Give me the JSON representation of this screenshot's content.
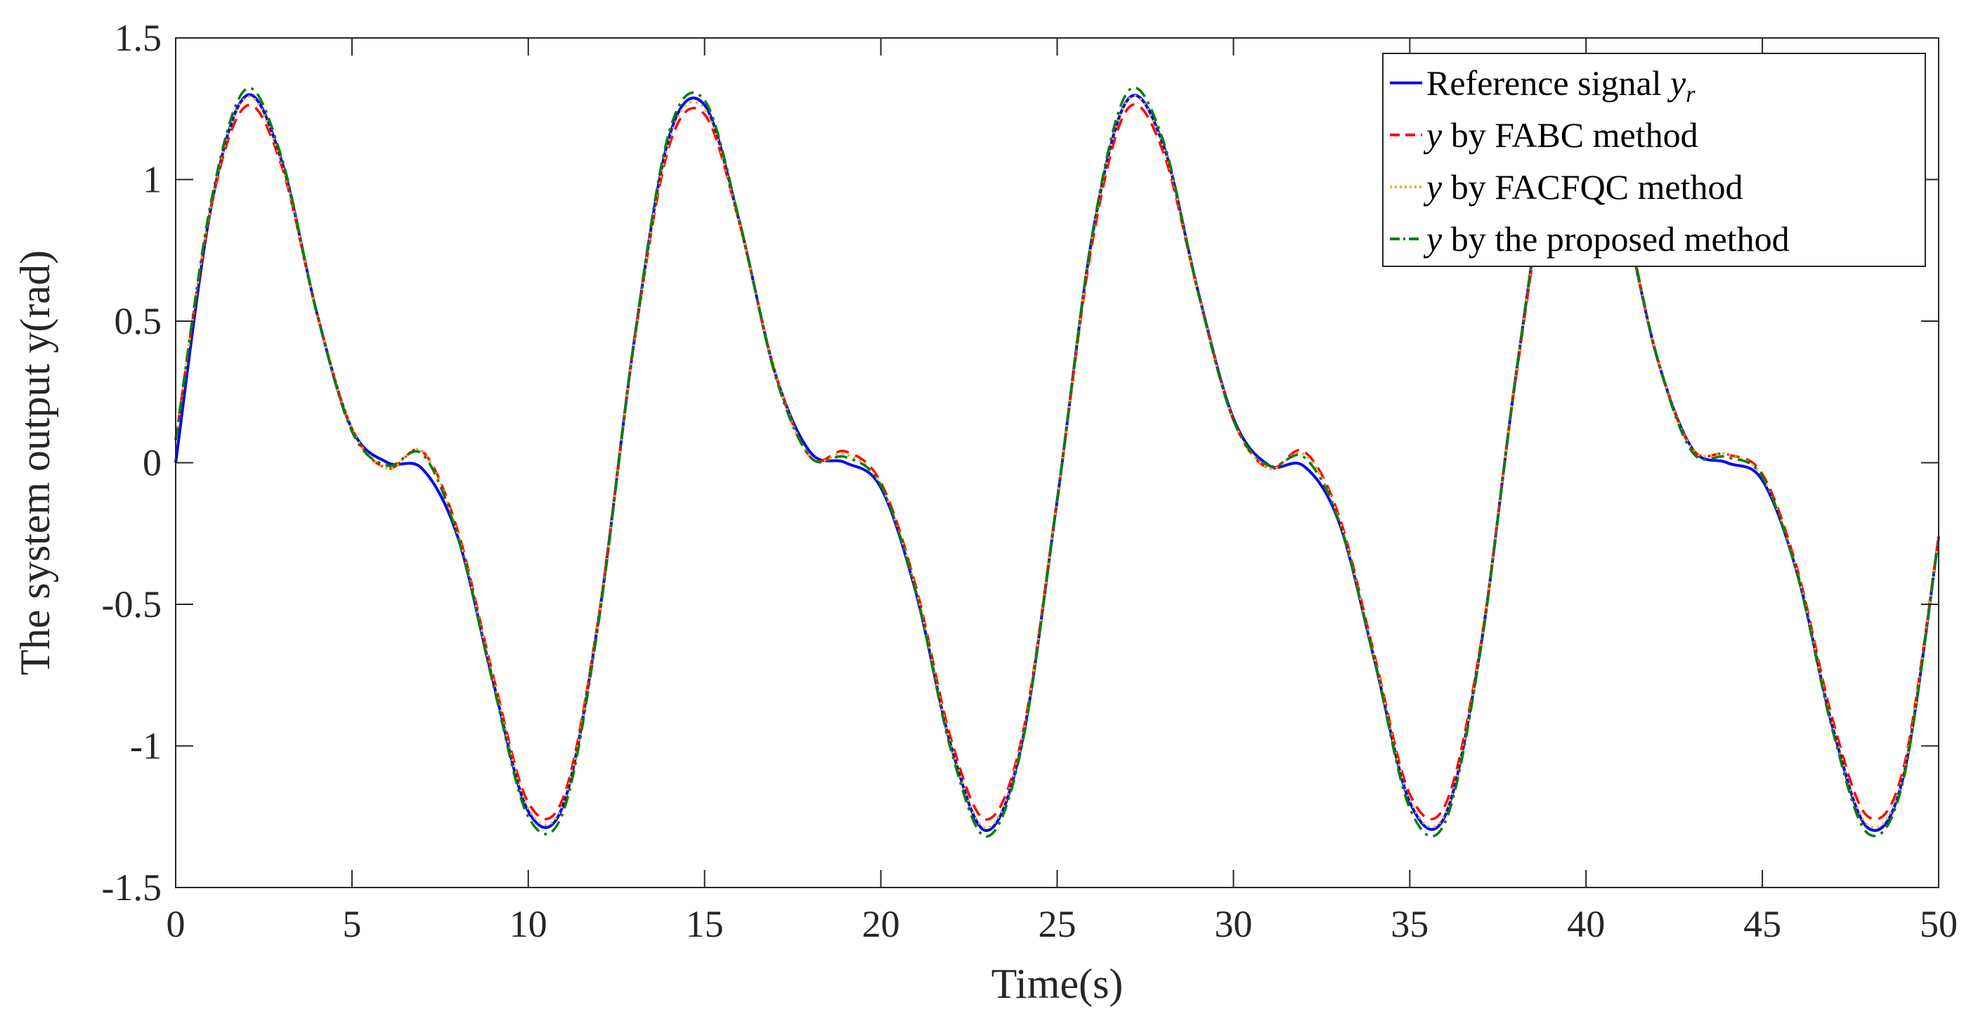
{
  "chart_data": {
    "type": "line",
    "title": "",
    "xlabel": "Time(s)",
    "ylabel": "The system output y(rad)",
    "xlim": [
      0,
      50
    ],
    "ylim": [
      -1.5,
      1.5
    ],
    "xticks": [
      "0",
      "5",
      "10",
      "15",
      "20",
      "25",
      "30",
      "35",
      "40",
      "45",
      "50"
    ],
    "yticks": [
      "-1.5",
      "-1",
      "-0.5",
      "0",
      "0.5",
      "1",
      "1.5"
    ],
    "grid": false,
    "legend_position": "top-right",
    "x": [
      0,
      1,
      2,
      3,
      4,
      5,
      6,
      7,
      8,
      9,
      10,
      11,
      12,
      13,
      14,
      15,
      16,
      17,
      18,
      19,
      20,
      21,
      22,
      23,
      24,
      25,
      26,
      27,
      28,
      29,
      30,
      31,
      32,
      33,
      34,
      35,
      36,
      37,
      38,
      39,
      40,
      41,
      42,
      43,
      44,
      45,
      46,
      47,
      48,
      49,
      50
    ],
    "series": [
      {
        "name": "Reference signal y_r",
        "legend_main": "Reference signal ",
        "legend_italic": "y",
        "legend_sub": "r",
        "color": "#0000ff",
        "dash": "solid",
        "values": [
          0,
          0.9,
          1.296,
          1.068,
          0.531,
          0.119,
          0.001,
          -0.022,
          -0.262,
          -0.771,
          -1.231,
          -1.206,
          -0.548,
          0.425,
          1.152,
          1.263,
          0.845,
          0.318,
          0.037,
          0.0,
          -0.088,
          -0.461,
          -1.004,
          -1.299,
          -0.989,
          -0.133,
          0.802,
          1.282,
          1.126,
          0.603,
          0.156,
          -0.009,
          -0.012,
          -0.212,
          -0.697,
          -1.198,
          -1.247,
          -0.66,
          0.298,
          1.087,
          1.286,
          0.918,
          0.378,
          0.052,
          0.0,
          -0.062,
          -0.395,
          -0.937,
          -1.29,
          -1.108,
          -0.263
        ]
      },
      {
        "name": "y by FABC method",
        "legend_main": " by FABC method",
        "legend_italic": "y",
        "color": "#ff0000",
        "dash": "dashed",
        "values": [
          0.08,
          0.9,
          1.26,
          1.05,
          0.53,
          0.12,
          -0.02,
          0.04,
          -0.24,
          -0.75,
          -1.2,
          -1.18,
          -0.54,
          0.42,
          1.12,
          1.23,
          0.84,
          0.32,
          0.02,
          0.04,
          -0.07,
          -0.44,
          -0.98,
          -1.26,
          -0.97,
          -0.13,
          0.78,
          1.25,
          1.1,
          0.6,
          0.15,
          -0.02,
          0.04,
          -0.19,
          -0.68,
          -1.17,
          -1.21,
          -0.65,
          0.29,
          1.06,
          1.25,
          0.91,
          0.38,
          0.05,
          0.03,
          -0.04,
          -0.38,
          -0.91,
          -1.25,
          -1.08,
          -0.26
        ]
      },
      {
        "name": "y by FACFQC method",
        "legend_main": " by FACFQC method",
        "legend_italic": "y",
        "color": "#edb120",
        "dash": "dotted",
        "values": [
          0.08,
          0.91,
          1.29,
          1.06,
          0.53,
          0.12,
          -0.02,
          0.04,
          -0.25,
          -0.76,
          -1.22,
          -1.2,
          -0.55,
          0.42,
          1.14,
          1.25,
          0.84,
          0.32,
          0.02,
          0.03,
          -0.08,
          -0.45,
          -1.0,
          -1.29,
          -0.98,
          -0.13,
          0.8,
          1.28,
          1.12,
          0.6,
          0.15,
          -0.02,
          0.03,
          -0.2,
          -0.69,
          -1.19,
          -1.24,
          -0.66,
          0.3,
          1.08,
          1.28,
          0.92,
          0.38,
          0.05,
          0.03,
          -0.05,
          -0.39,
          -0.93,
          -1.28,
          -1.1,
          -0.26
        ]
      },
      {
        "name": "y by the proposed method",
        "legend_main": " by the proposed method",
        "legend_italic": "y",
        "color": "#008000",
        "dash": "dashdot",
        "values": [
          0.08,
          0.92,
          1.32,
          1.08,
          0.53,
          0.11,
          -0.01,
          0.03,
          -0.26,
          -0.78,
          -1.25,
          -1.23,
          -0.56,
          0.43,
          1.17,
          1.28,
          0.85,
          0.31,
          0.02,
          0.02,
          -0.08,
          -0.46,
          -1.02,
          -1.32,
          -1.0,
          -0.13,
          0.81,
          1.31,
          1.14,
          0.6,
          0.15,
          -0.01,
          0.02,
          -0.21,
          -0.7,
          -1.22,
          -1.27,
          -0.67,
          0.3,
          1.1,
          1.31,
          0.93,
          0.38,
          0.04,
          0.02,
          -0.05,
          -0.4,
          -0.95,
          -1.31,
          -1.12,
          -0.26
        ]
      }
    ]
  }
}
